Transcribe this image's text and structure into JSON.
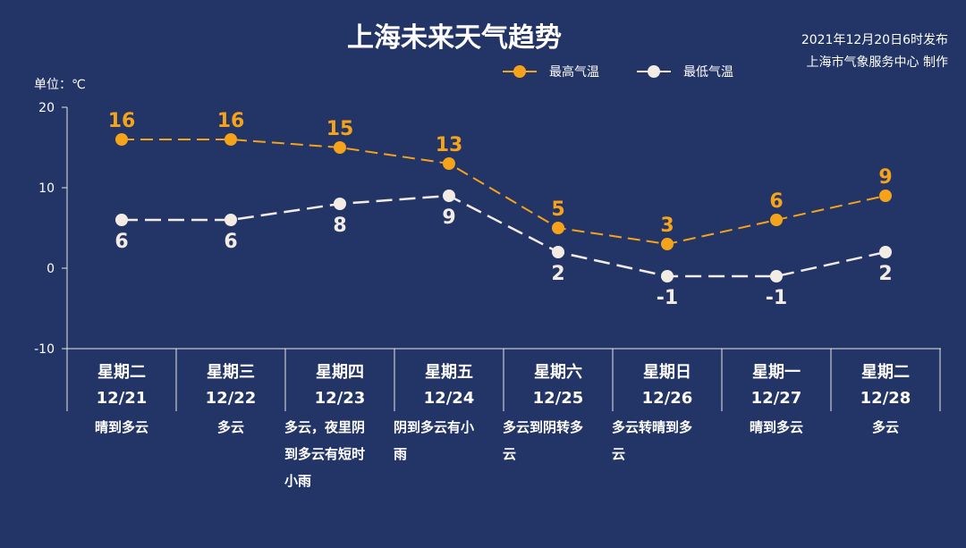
{
  "chart_data": {
    "type": "line",
    "title": "上海未来天气趋势",
    "publish_info": [
      "2021年12月20日6时发布",
      "上海市气象服务中心 制作"
    ],
    "unit_label": "单位：℃",
    "ylim": [
      -10,
      20
    ],
    "yticks": [
      20,
      10,
      0,
      -10
    ],
    "grid": false,
    "legend_position": "top-right",
    "categories": [
      {
        "day": "星期二",
        "date": "12/21",
        "weather": [
          "晴到多云"
        ]
      },
      {
        "day": "星期三",
        "date": "12/22",
        "weather": [
          "多云"
        ]
      },
      {
        "day": "星期四",
        "date": "12/23",
        "weather": [
          "多云，夜里阴",
          "到多云有短时",
          "小雨"
        ]
      },
      {
        "day": "星期五",
        "date": "12/24",
        "weather": [
          "阴到多云有小",
          "雨"
        ]
      },
      {
        "day": "星期六",
        "date": "12/25",
        "weather": [
          "多云到阴转多",
          "云"
        ]
      },
      {
        "day": "星期日",
        "date": "12/26",
        "weather": [
          "多云转晴到多",
          "云"
        ]
      },
      {
        "day": "星期一",
        "date": "12/27",
        "weather": [
          "晴到多云"
        ]
      },
      {
        "day": "星期二",
        "date": "12/28",
        "weather": [
          "多云"
        ]
      }
    ],
    "series": [
      {
        "name": "最高气温",
        "color": "#f5a31a",
        "values": [
          16,
          16,
          15,
          13,
          5,
          3,
          6,
          9
        ]
      },
      {
        "name": "最低气温",
        "color": "#f2ece4",
        "values": [
          6,
          6,
          8,
          9,
          2,
          -1,
          -1,
          2
        ]
      }
    ]
  }
}
